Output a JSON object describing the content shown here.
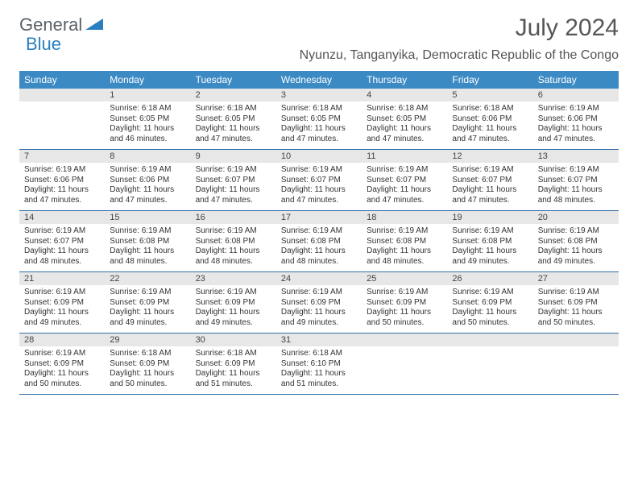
{
  "logo": {
    "word1": "General",
    "word2": "Blue"
  },
  "title": "July 2024",
  "location": "Nyunzu, Tanganyika, Democratic Republic of the Congo",
  "colors": {
    "header_bg": "#3b8ac4",
    "daynum_bg": "#e7e7e7",
    "rule": "#2f6fa8",
    "text": "#333333",
    "title_text": "#555555",
    "logo_gray": "#5a6268",
    "logo_blue": "#2a7fbf"
  },
  "weekdays": [
    "Sunday",
    "Monday",
    "Tuesday",
    "Wednesday",
    "Thursday",
    "Friday",
    "Saturday"
  ],
  "weeks": [
    {
      "nums": [
        "",
        "1",
        "2",
        "3",
        "4",
        "5",
        "6"
      ],
      "cells": [
        null,
        {
          "sunrise": "6:18 AM",
          "sunset": "6:05 PM",
          "daylight": "11 hours and 46 minutes."
        },
        {
          "sunrise": "6:18 AM",
          "sunset": "6:05 PM",
          "daylight": "11 hours and 47 minutes."
        },
        {
          "sunrise": "6:18 AM",
          "sunset": "6:05 PM",
          "daylight": "11 hours and 47 minutes."
        },
        {
          "sunrise": "6:18 AM",
          "sunset": "6:05 PM",
          "daylight": "11 hours and 47 minutes."
        },
        {
          "sunrise": "6:18 AM",
          "sunset": "6:06 PM",
          "daylight": "11 hours and 47 minutes."
        },
        {
          "sunrise": "6:19 AM",
          "sunset": "6:06 PM",
          "daylight": "11 hours and 47 minutes."
        }
      ]
    },
    {
      "nums": [
        "7",
        "8",
        "9",
        "10",
        "11",
        "12",
        "13"
      ],
      "cells": [
        {
          "sunrise": "6:19 AM",
          "sunset": "6:06 PM",
          "daylight": "11 hours and 47 minutes."
        },
        {
          "sunrise": "6:19 AM",
          "sunset": "6:06 PM",
          "daylight": "11 hours and 47 minutes."
        },
        {
          "sunrise": "6:19 AM",
          "sunset": "6:07 PM",
          "daylight": "11 hours and 47 minutes."
        },
        {
          "sunrise": "6:19 AM",
          "sunset": "6:07 PM",
          "daylight": "11 hours and 47 minutes."
        },
        {
          "sunrise": "6:19 AM",
          "sunset": "6:07 PM",
          "daylight": "11 hours and 47 minutes."
        },
        {
          "sunrise": "6:19 AM",
          "sunset": "6:07 PM",
          "daylight": "11 hours and 47 minutes."
        },
        {
          "sunrise": "6:19 AM",
          "sunset": "6:07 PM",
          "daylight": "11 hours and 48 minutes."
        }
      ]
    },
    {
      "nums": [
        "14",
        "15",
        "16",
        "17",
        "18",
        "19",
        "20"
      ],
      "cells": [
        {
          "sunrise": "6:19 AM",
          "sunset": "6:07 PM",
          "daylight": "11 hours and 48 minutes."
        },
        {
          "sunrise": "6:19 AM",
          "sunset": "6:08 PM",
          "daylight": "11 hours and 48 minutes."
        },
        {
          "sunrise": "6:19 AM",
          "sunset": "6:08 PM",
          "daylight": "11 hours and 48 minutes."
        },
        {
          "sunrise": "6:19 AM",
          "sunset": "6:08 PM",
          "daylight": "11 hours and 48 minutes."
        },
        {
          "sunrise": "6:19 AM",
          "sunset": "6:08 PM",
          "daylight": "11 hours and 48 minutes."
        },
        {
          "sunrise": "6:19 AM",
          "sunset": "6:08 PM",
          "daylight": "11 hours and 49 minutes."
        },
        {
          "sunrise": "6:19 AM",
          "sunset": "6:08 PM",
          "daylight": "11 hours and 49 minutes."
        }
      ]
    },
    {
      "nums": [
        "21",
        "22",
        "23",
        "24",
        "25",
        "26",
        "27"
      ],
      "cells": [
        {
          "sunrise": "6:19 AM",
          "sunset": "6:09 PM",
          "daylight": "11 hours and 49 minutes."
        },
        {
          "sunrise": "6:19 AM",
          "sunset": "6:09 PM",
          "daylight": "11 hours and 49 minutes."
        },
        {
          "sunrise": "6:19 AM",
          "sunset": "6:09 PM",
          "daylight": "11 hours and 49 minutes."
        },
        {
          "sunrise": "6:19 AM",
          "sunset": "6:09 PM",
          "daylight": "11 hours and 49 minutes."
        },
        {
          "sunrise": "6:19 AM",
          "sunset": "6:09 PM",
          "daylight": "11 hours and 50 minutes."
        },
        {
          "sunrise": "6:19 AM",
          "sunset": "6:09 PM",
          "daylight": "11 hours and 50 minutes."
        },
        {
          "sunrise": "6:19 AM",
          "sunset": "6:09 PM",
          "daylight": "11 hours and 50 minutes."
        }
      ]
    },
    {
      "nums": [
        "28",
        "29",
        "30",
        "31",
        "",
        "",
        ""
      ],
      "cells": [
        {
          "sunrise": "6:19 AM",
          "sunset": "6:09 PM",
          "daylight": "11 hours and 50 minutes."
        },
        {
          "sunrise": "6:18 AM",
          "sunset": "6:09 PM",
          "daylight": "11 hours and 50 minutes."
        },
        {
          "sunrise": "6:18 AM",
          "sunset": "6:09 PM",
          "daylight": "11 hours and 51 minutes."
        },
        {
          "sunrise": "6:18 AM",
          "sunset": "6:10 PM",
          "daylight": "11 hours and 51 minutes."
        },
        null,
        null,
        null
      ]
    }
  ],
  "labels": {
    "sunrise": "Sunrise:",
    "sunset": "Sunset:",
    "daylight": "Daylight:"
  }
}
